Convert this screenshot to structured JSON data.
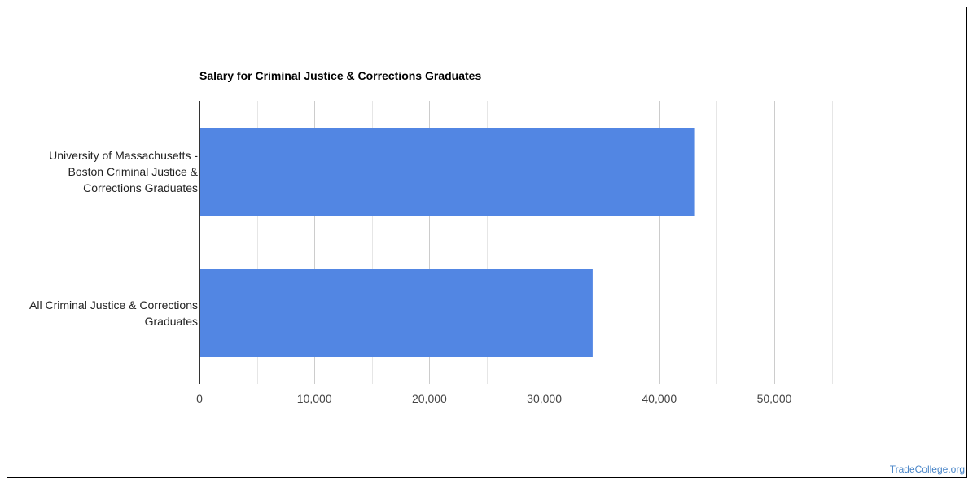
{
  "chart_data": {
    "type": "bar",
    "orientation": "horizontal",
    "title": "Salary for Criminal Justice & Corrections Graduates",
    "categories": [
      [
        "University of Massachusetts -",
        "Boston Criminal Justice &",
        "Corrections Graduates"
      ],
      [
        "All Criminal Justice & Corrections",
        "Graduates"
      ]
    ],
    "values": [
      43100,
      34200
    ],
    "xlim": [
      0,
      55000
    ],
    "x_ticks": [
      0,
      10000,
      20000,
      30000,
      40000,
      50000
    ],
    "x_tick_labels": [
      "0",
      "10,000",
      "20,000",
      "30,000",
      "40,000",
      "50,000"
    ],
    "grid": true,
    "legend": "none",
    "bar_color": "#5286e3",
    "xlabel": "",
    "ylabel": ""
  },
  "footer": {
    "watermark": "TradeCollege.org"
  },
  "colors": {
    "grid_major": "#cccccc",
    "grid_minor": "#e6e6e6",
    "axis": "#333333"
  }
}
